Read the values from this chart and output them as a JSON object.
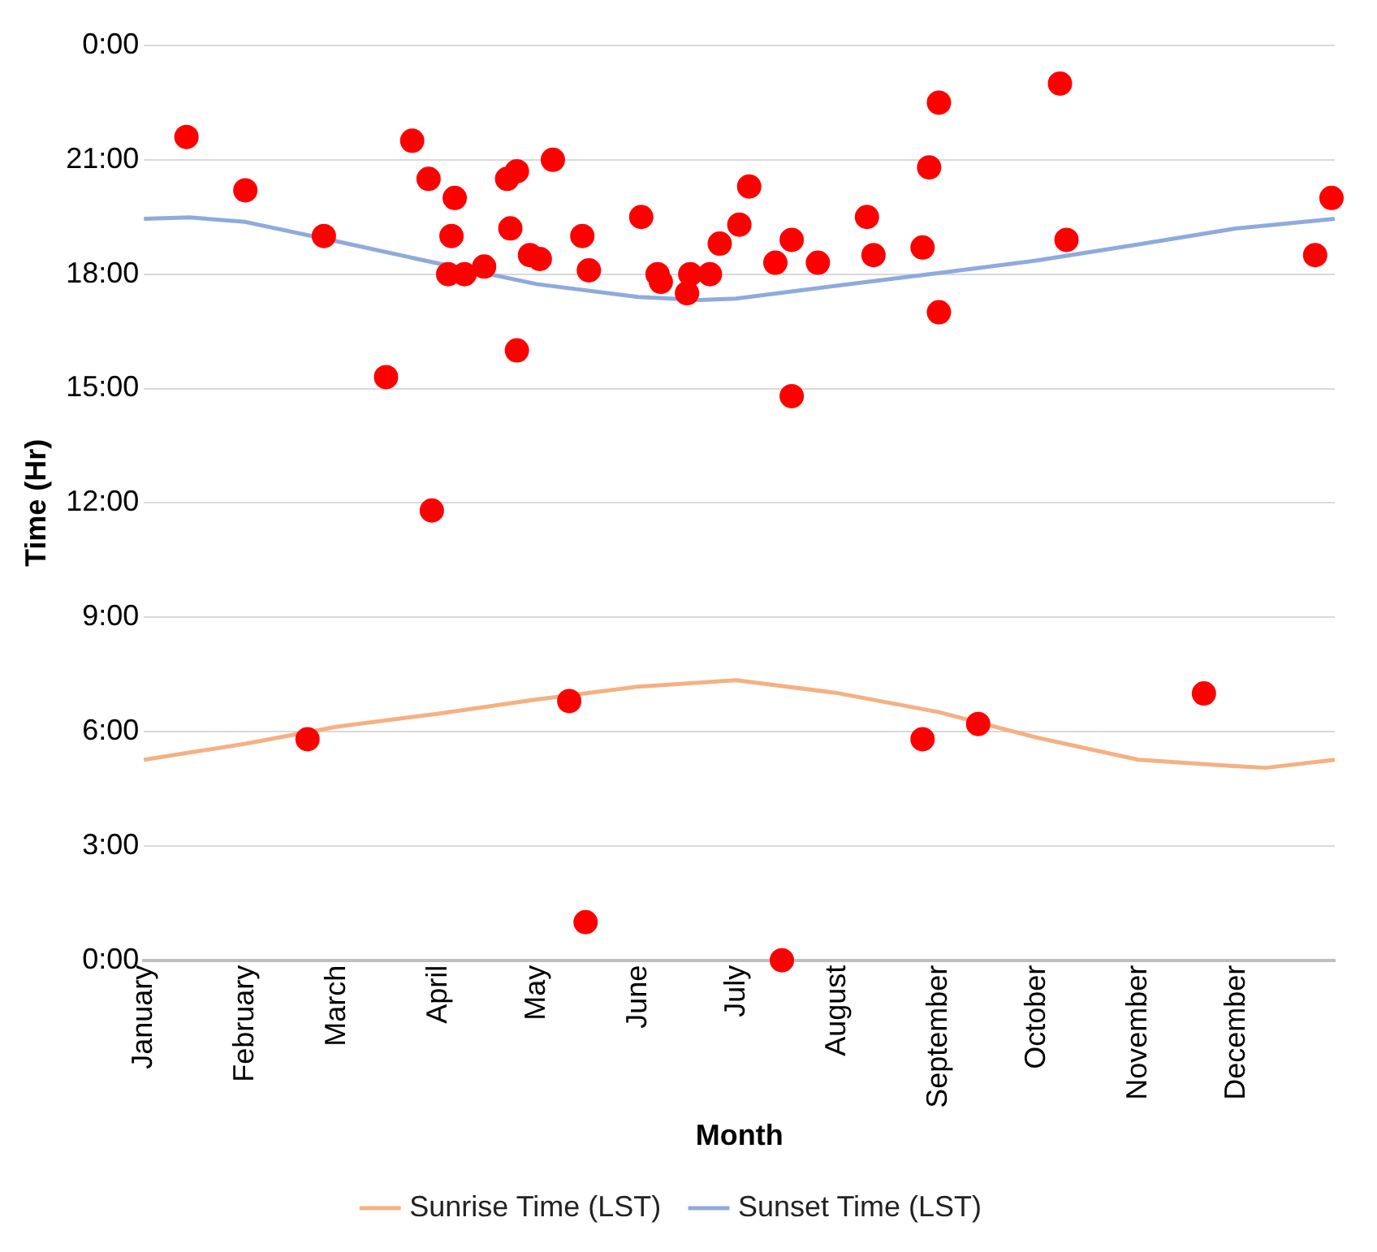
{
  "chart_data": {
    "type": "scatter",
    "xlabel": "Month",
    "ylabel": "Time (Hr)",
    "xlim": [
      "--01-01",
      "--12-31"
    ],
    "xticks": [
      {
        "value": "--01-01",
        "label": "January"
      },
      {
        "value": "--02-01",
        "label": "February"
      },
      {
        "value": "--03-01",
        "label": "March"
      },
      {
        "value": "--04-01",
        "label": "April"
      },
      {
        "value": "--05-01",
        "label": "May"
      },
      {
        "value": "--06-01",
        "label": "June"
      },
      {
        "value": "--07-01",
        "label": "July"
      },
      {
        "value": "--08-01",
        "label": "August"
      },
      {
        "value": "--09-01",
        "label": "September"
      },
      {
        "value": "--10-01",
        "label": "October"
      },
      {
        "value": "--11-01",
        "label": "November"
      },
      {
        "value": "--12-01",
        "label": "December"
      }
    ],
    "ylim": [
      0,
      24
    ],
    "yticks": [
      {
        "value": 0,
        "label": "0:00"
      },
      {
        "value": 3,
        "label": "3:00"
      },
      {
        "value": 6,
        "label": "6:00"
      },
      {
        "value": 9,
        "label": "9:00"
      },
      {
        "value": 12,
        "label": "12:00"
      },
      {
        "value": 15,
        "label": "15:00"
      },
      {
        "value": 18,
        "label": "18:00"
      },
      {
        "value": 21,
        "label": "21:00"
      },
      {
        "value": 24,
        "label": "0:00"
      }
    ],
    "grid": "y",
    "legend": "bottom",
    "series": [
      {
        "type": "scatter",
        "marker": "circle",
        "color": "#ff0000",
        "x": [
          "--01-14",
          "--02-01",
          "--02-20",
          "--02-25",
          "--03-16",
          "--03-24",
          "--03-29",
          "--03-30",
          "--04-04",
          "--04-05",
          "--04-06",
          "--04-09",
          "--04-15",
          "--04-22",
          "--04-23",
          "--04-25",
          "--04-25",
          "--04-29",
          "--05-02",
          "--05-06",
          "--05-11",
          "--05-15",
          "--05-16",
          "--05-17",
          "--06-02",
          "--06-07",
          "--06-08",
          "--06-16",
          "--06-17",
          "--06-23",
          "--06-26",
          "--07-02",
          "--07-05",
          "--07-13",
          "--07-15",
          "--07-18",
          "--07-18",
          "--07-26",
          "--08-10",
          "--08-12",
          "--08-27",
          "--08-27",
          "--08-29",
          "--09-01",
          "--09-01",
          "--09-13",
          "--10-08",
          "--10-10",
          "--11-21",
          "--12-25",
          "--12-30"
        ],
        "values": [
          21.6,
          20.2,
          5.8,
          19.0,
          15.3,
          21.5,
          20.5,
          11.8,
          18.0,
          19.0,
          20.0,
          18.0,
          18.2,
          20.5,
          19.2,
          20.7,
          16.0,
          18.5,
          18.4,
          21.0,
          6.8,
          19.0,
          1.0,
          18.1,
          19.5,
          18.0,
          17.8,
          17.5,
          18.0,
          18.0,
          18.8,
          19.3,
          20.3,
          18.3,
          0.0,
          14.8,
          18.9,
          18.3,
          19.5,
          18.5,
          5.8,
          18.7,
          20.8,
          22.5,
          17.0,
          6.2,
          23.0,
          18.9,
          7.0,
          18.5,
          20.0
        ]
      },
      {
        "type": "line",
        "marker": "none",
        "line_style": "solid",
        "name": "Sunrise Time (LST)",
        "color": "#f4b183",
        "x": [
          "--01-01",
          "--02-01",
          "--03-01",
          "--04-01",
          "--05-01",
          "--06-01",
          "--07-01",
          "--08-01",
          "--09-01",
          "--10-01",
          "--11-01",
          "--12-01",
          "--12-10",
          "--12-31"
        ],
        "values": [
          5.26,
          5.68,
          6.13,
          6.47,
          6.84,
          7.18,
          7.35,
          7.01,
          6.51,
          5.84,
          5.26,
          5.09,
          5.05,
          5.26
        ]
      },
      {
        "type": "line",
        "marker": "none",
        "line_style": "solid",
        "name": "Sunset Time (LST)",
        "color": "#8faadc",
        "x": [
          "--01-01",
          "--01-15",
          "--02-01",
          "--03-01",
          "--04-01",
          "--05-01",
          "--06-01",
          "--06-20",
          "--07-01",
          "--08-01",
          "--09-01",
          "--10-01",
          "--11-01",
          "--12-01",
          "--12-31"
        ],
        "values": [
          19.45,
          19.49,
          19.37,
          18.86,
          18.28,
          17.74,
          17.4,
          17.32,
          17.36,
          17.7,
          18.03,
          18.36,
          18.78,
          19.2,
          19.45
        ]
      }
    ]
  }
}
